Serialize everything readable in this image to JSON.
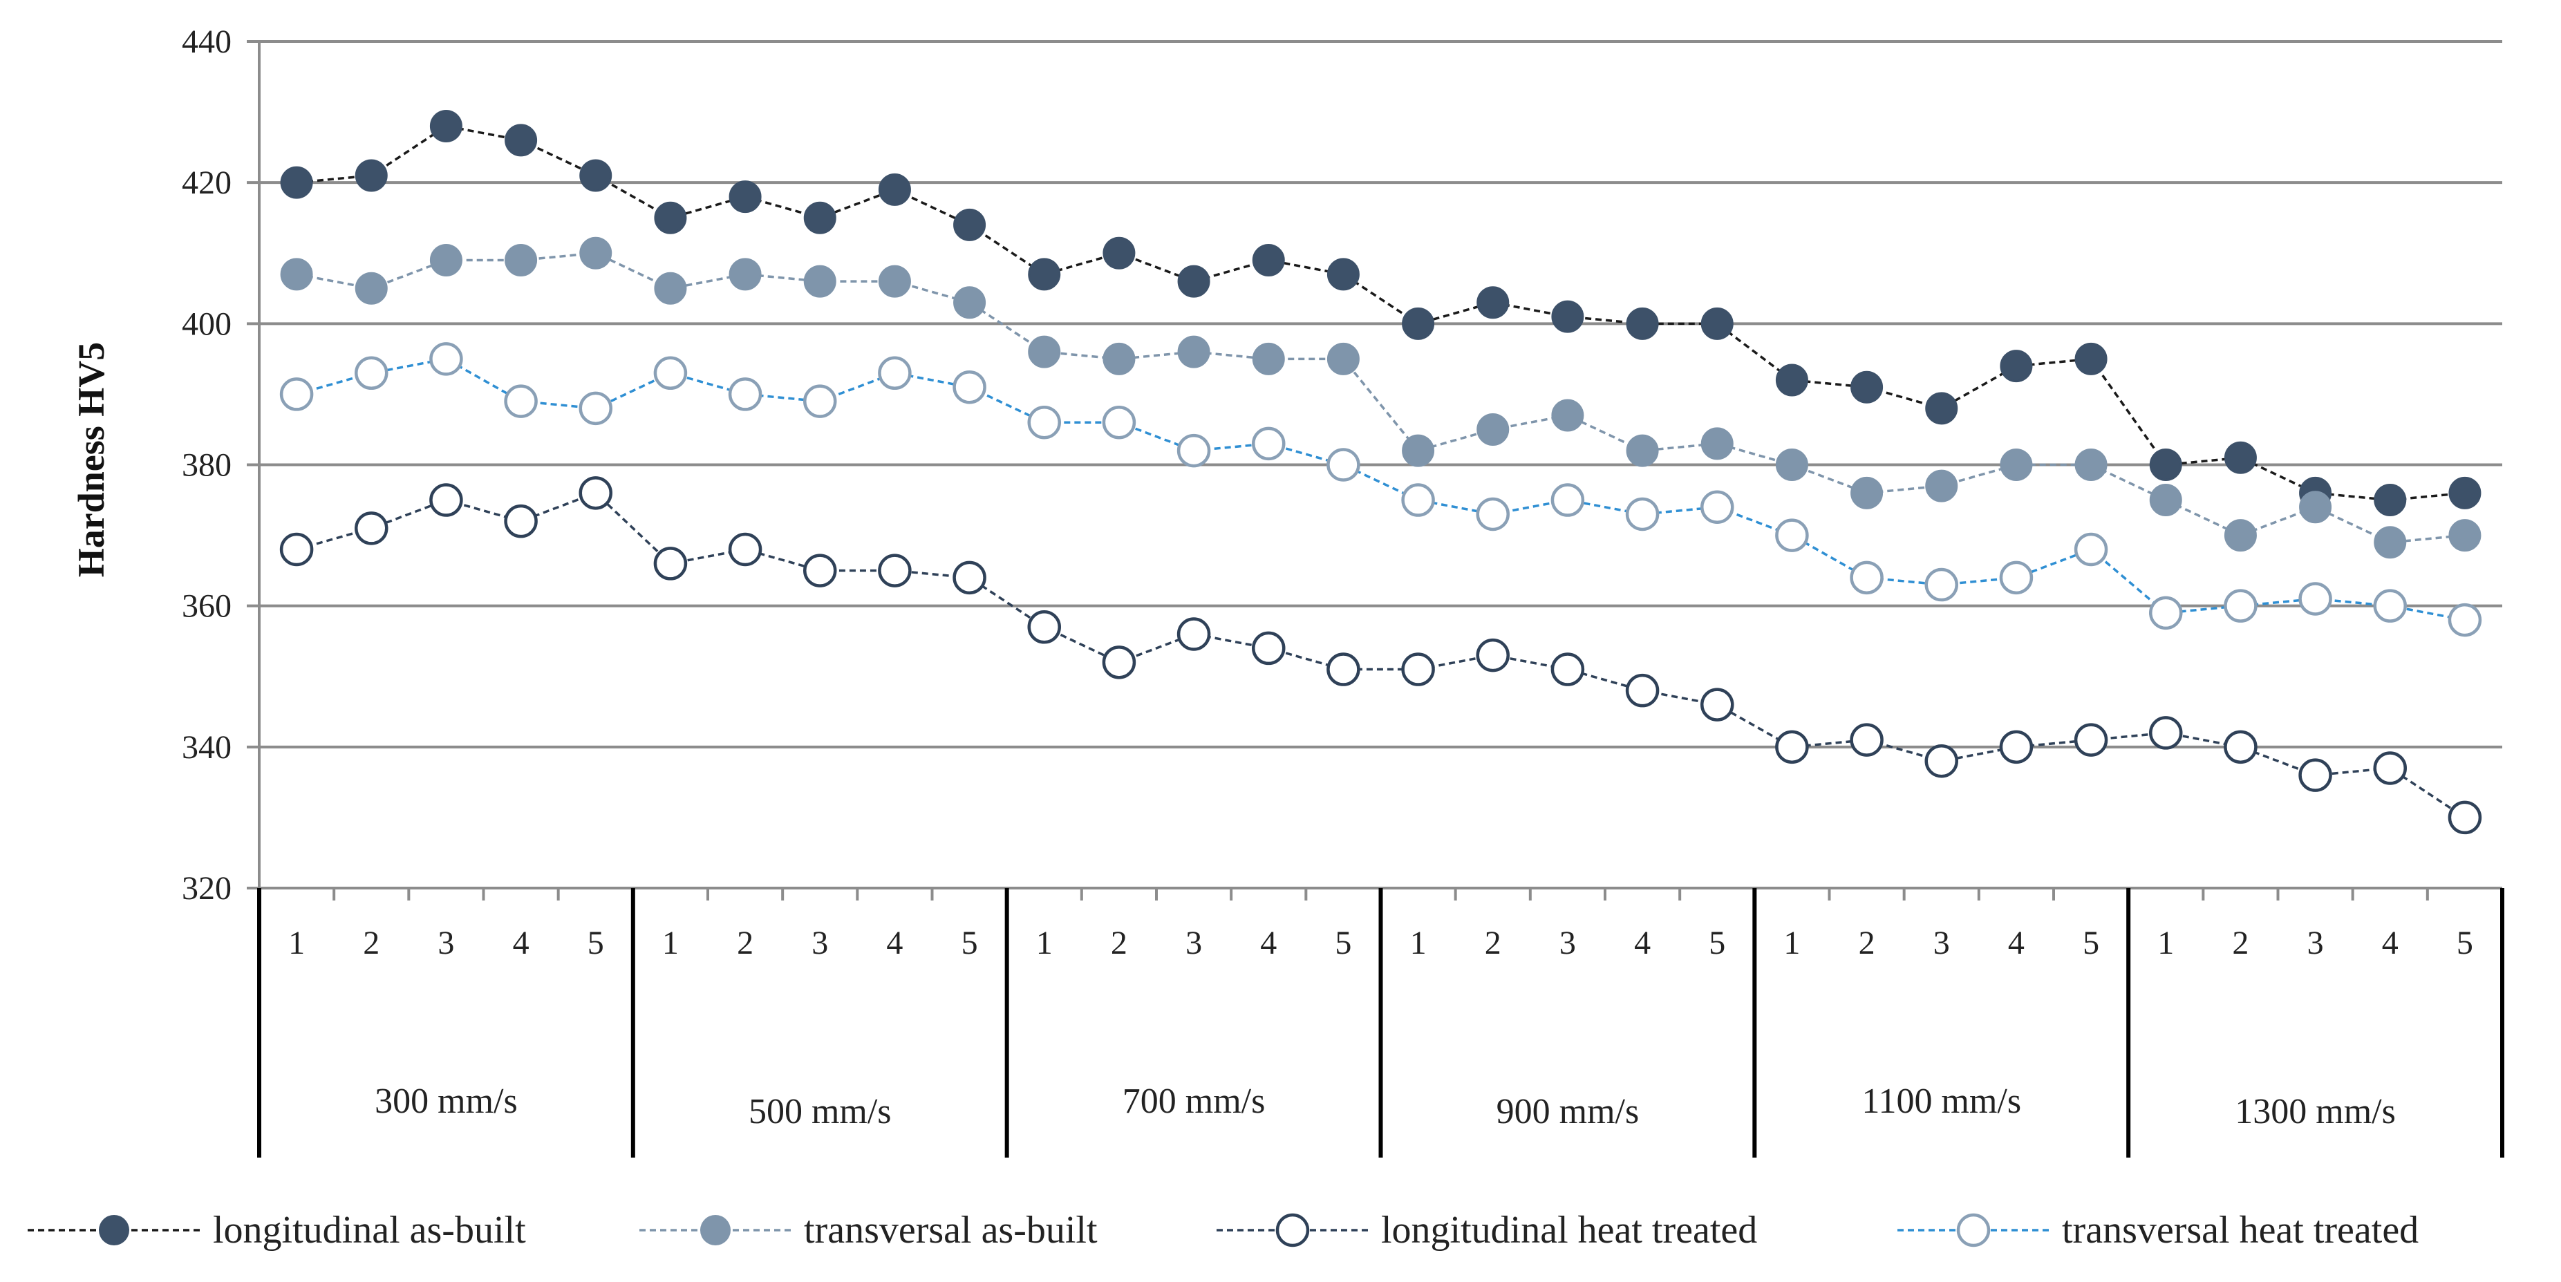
{
  "chart_data": {
    "type": "line",
    "ylabel": "Hardness HV5",
    "ylim": [
      320,
      440
    ],
    "yticks": [
      320,
      340,
      360,
      380,
      400,
      420,
      440
    ],
    "grid": "horizontal",
    "legend_position": "bottom",
    "groups": [
      "300 mm/s",
      "500 mm/s",
      "700 mm/s",
      "900 mm/s",
      "1100 mm/s",
      "1300 mm/s"
    ],
    "positions": [
      "1",
      "2",
      "3",
      "4",
      "5"
    ],
    "series": [
      {
        "name": "longitudinal as-built",
        "marker": "filled",
        "line_color": "#1a1a1a",
        "marker_color": "#3d5169",
        "values": [
          420,
          421,
          428,
          426,
          421,
          415,
          418,
          415,
          419,
          414,
          407,
          410,
          406,
          409,
          407,
          400,
          403,
          401,
          400,
          400,
          392,
          391,
          388,
          394,
          395,
          380,
          381,
          376,
          375,
          376
        ]
      },
      {
        "name": "transversal as-built",
        "marker": "filled",
        "line_color": "#7f95ab",
        "marker_color": "#7f95ab",
        "values": [
          407,
          405,
          409,
          409,
          410,
          405,
          407,
          406,
          406,
          403,
          396,
          395,
          396,
          395,
          395,
          382,
          385,
          387,
          382,
          383,
          380,
          376,
          377,
          380,
          380,
          375,
          370,
          374,
          369,
          370
        ]
      },
      {
        "name": "longitudinal heat treated",
        "marker": "hollow",
        "line_color": "#2f4158",
        "marker_color": "#2f4158",
        "values": [
          368,
          371,
          375,
          372,
          376,
          366,
          368,
          365,
          365,
          364,
          357,
          352,
          356,
          354,
          351,
          351,
          353,
          351,
          348,
          346,
          340,
          341,
          338,
          340,
          341,
          342,
          340,
          336,
          337,
          330
        ]
      },
      {
        "name": "transversal heat treated",
        "marker": "hollow",
        "line_color": "#2f8fd3",
        "marker_color": "#8aa0b6",
        "values": [
          390,
          393,
          395,
          389,
          388,
          393,
          390,
          389,
          393,
          391,
          386,
          386,
          382,
          383,
          380,
          375,
          373,
          375,
          373,
          374,
          370,
          364,
          363,
          364,
          368,
          359,
          360,
          361,
          360,
          358
        ]
      }
    ]
  }
}
